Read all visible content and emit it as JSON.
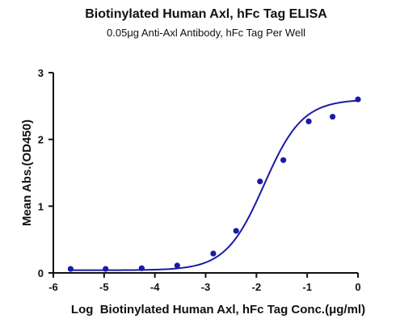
{
  "chart_data": {
    "type": "scatter",
    "title": "Biotinylated Human Axl, hFc Tag ELISA",
    "subtitle": "0.05μg Anti-Axl Antibody, hFc Tag Per Well",
    "xlabel": "Log  Biotinylated Human Axl, hFc Tag Conc.(μg/ml)",
    "ylabel": "Mean Abs.(OD450)",
    "xlim": [
      -6,
      0
    ],
    "ylim": [
      0,
      3
    ],
    "x_ticks": [
      "-6",
      "-5",
      "-4",
      "-3",
      "-2",
      "-1",
      "0"
    ],
    "y_ticks": [
      "0",
      "1",
      "2",
      "3"
    ],
    "grid": false,
    "legend": "none",
    "series": [
      {
        "color": "#1a1aa6",
        "points": [
          {
            "x": -5.66,
            "y": 0.06
          },
          {
            "x": -4.97,
            "y": 0.06
          },
          {
            "x": -4.26,
            "y": 0.07
          },
          {
            "x": -3.56,
            "y": 0.11
          },
          {
            "x": -2.85,
            "y": 0.29
          },
          {
            "x": -2.4,
            "y": 0.63
          },
          {
            "x": -1.93,
            "y": 1.37
          },
          {
            "x": -1.47,
            "y": 1.69
          },
          {
            "x": -0.97,
            "y": 2.27
          },
          {
            "x": -0.5,
            "y": 2.34
          },
          {
            "x": 0.0,
            "y": 2.6
          }
        ],
        "fit": {
          "model": "4PL",
          "bottom": 0.04,
          "top": 2.6,
          "log_ec50": -1.85,
          "hill_slope": 1.15
        }
      }
    ]
  }
}
